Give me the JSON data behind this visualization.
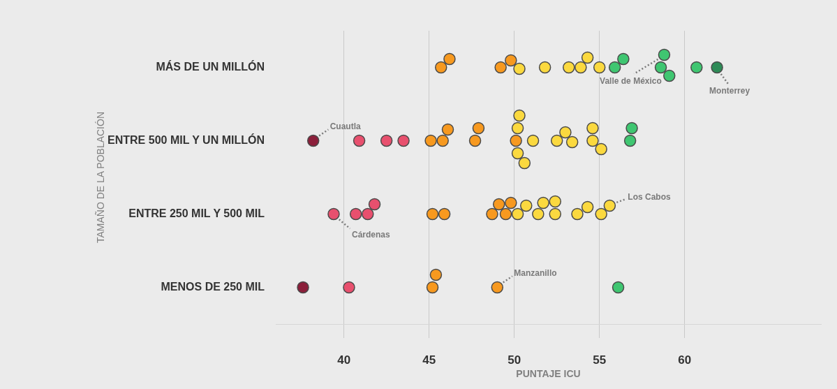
{
  "chart_data": {
    "type": "scatter",
    "orientation": "horizontal",
    "xlabel": "PUNTAJE ICU",
    "ylabel": "TAMAÑO DE LA POBLACIÓN",
    "categories": [
      "MÁS DE UN MILLÓN",
      "ENTRE 500 MIL Y UN MILLÓN",
      "ENTRE 250 MIL Y 500 MIL",
      "MENOS DE 250 MIL"
    ],
    "xlim": [
      36,
      68
    ],
    "xticks": [
      40,
      45,
      50,
      55,
      60
    ],
    "grid": "x",
    "legend": false,
    "marker": "circle",
    "series": [
      {
        "x": [
          "MÁS DE UN MILLÓN",
          "MÁS DE UN MILLÓN",
          "MÁS DE UN MILLÓN",
          "MÁS DE UN MILLÓN",
          "MÁS DE UN MILLÓN",
          "MÁS DE UN MILLÓN",
          "MÁS DE UN MILLÓN",
          "MÁS DE UN MILLÓN",
          "MÁS DE UN MILLÓN",
          "MÁS DE UN MILLÓN",
          "MÁS DE UN MILLÓN",
          "MÁS DE UN MILLÓN",
          "MÁS DE UN MILLÓN",
          "MÁS DE UN MILLÓN",
          "MÁS DE UN MILLÓN",
          "MÁS DE UN MILLÓN",
          "MÁS DE UN MILLÓN"
        ],
        "values": [
          45.7,
          46.2,
          49.2,
          49.8,
          50.3,
          51.8,
          53.2,
          53.9,
          54.3,
          55.0,
          55.9,
          56.4,
          58.6,
          58.8,
          59.1,
          60.7,
          61.9
        ],
        "colors": [
          "#f7991f",
          "#f7991f",
          "#f7991f",
          "#f7991f",
          "#fbd93f",
          "#fbd93f",
          "#fbd93f",
          "#fbd93f",
          "#fbd93f",
          "#fbd93f",
          "#3fc671",
          "#3fc671",
          "#3fc671",
          "#3fc671",
          "#3fc671",
          "#3fc671",
          "#2e8b57"
        ]
      },
      {
        "x": [
          "ENTRE 500 MIL Y UN MILLÓN",
          "ENTRE 500 MIL Y UN MILLÓN",
          "ENTRE 500 MIL Y UN MILLÓN",
          "ENTRE 500 MIL Y UN MILLÓN",
          "ENTRE 500 MIL Y UN MILLÓN",
          "ENTRE 500 MIL Y UN MILLÓN",
          "ENTRE 500 MIL Y UN MILLÓN",
          "ENTRE 500 MIL Y UN MILLÓN",
          "ENTRE 500 MIL Y UN MILLÓN",
          "ENTRE 500 MIL Y UN MILLÓN",
          "ENTRE 500 MIL Y UN MILLÓN",
          "ENTRE 500 MIL Y UN MILLÓN",
          "ENTRE 500 MIL Y UN MILLÓN",
          "ENTRE 500 MIL Y UN MILLÓN",
          "ENTRE 500 MIL Y UN MILLÓN",
          "ENTRE 500 MIL Y UN MILLÓN",
          "ENTRE 500 MIL Y UN MILLÓN",
          "ENTRE 500 MIL Y UN MILLÓN",
          "ENTRE 500 MIL Y UN MILLÓN",
          "ENTRE 500 MIL Y UN MILLÓN",
          "ENTRE 500 MIL Y UN MILLÓN",
          "ENTRE 500 MIL Y UN MILLÓN",
          "ENTRE 500 MIL Y UN MILLÓN"
        ],
        "values": [
          38.2,
          40.9,
          42.5,
          43.5,
          45.1,
          45.8,
          46.1,
          47.7,
          47.9,
          50.1,
          50.3,
          50.2,
          50.2,
          50.6,
          51.1,
          52.5,
          53.0,
          53.4,
          54.6,
          54.6,
          55.1,
          56.8,
          56.9
        ],
        "colors": [
          "#8b1f3a",
          "#e8506e",
          "#e8506e",
          "#e8506e",
          "#f7991f",
          "#f7991f",
          "#f7991f",
          "#f7991f",
          "#f7991f",
          "#f7991f",
          "#fbd93f",
          "#fbd93f",
          "#fbd93f",
          "#fbd93f",
          "#fbd93f",
          "#fbd93f",
          "#fbd93f",
          "#fbd93f",
          "#fbd93f",
          "#fbd93f",
          "#fbd93f",
          "#3fc671",
          "#3fc671"
        ]
      },
      {
        "x": [
          "ENTRE 250 MIL Y 500 MIL",
          "ENTRE 250 MIL Y 500 MIL",
          "ENTRE 250 MIL Y 500 MIL",
          "ENTRE 250 MIL Y 500 MIL",
          "ENTRE 250 MIL Y 500 MIL",
          "ENTRE 250 MIL Y 500 MIL",
          "ENTRE 250 MIL Y 500 MIL",
          "ENTRE 250 MIL Y 500 MIL",
          "ENTRE 250 MIL Y 500 MIL",
          "ENTRE 250 MIL Y 500 MIL",
          "ENTRE 250 MIL Y 500 MIL",
          "ENTRE 250 MIL Y 500 MIL",
          "ENTRE 250 MIL Y 500 MIL",
          "ENTRE 250 MIL Y 500 MIL",
          "ENTRE 250 MIL Y 500 MIL",
          "ENTRE 250 MIL Y 500 MIL",
          "ENTRE 250 MIL Y 500 MIL",
          "ENTRE 250 MIL Y 500 MIL",
          "ENTRE 250 MIL Y 500 MIL",
          "ENTRE 250 MIL Y 500 MIL"
        ],
        "values": [
          39.4,
          40.7,
          41.4,
          41.8,
          45.2,
          45.9,
          48.7,
          49.1,
          49.5,
          49.8,
          50.2,
          50.7,
          51.4,
          51.7,
          52.4,
          52.4,
          53.7,
          54.3,
          55.1,
          55.6
        ],
        "colors": [
          "#e8506e",
          "#e8506e",
          "#e8506e",
          "#e8506e",
          "#f7991f",
          "#f7991f",
          "#f7991f",
          "#f7991f",
          "#f7991f",
          "#f7991f",
          "#fbd93f",
          "#fbd93f",
          "#fbd93f",
          "#fbd93f",
          "#fbd93f",
          "#fbd93f",
          "#fbd93f",
          "#fbd93f",
          "#fbd93f",
          "#fbd93f"
        ]
      },
      {
        "x": [
          "MENOS DE 250 MIL",
          "MENOS DE 250 MIL",
          "MENOS DE 250 MIL",
          "MENOS DE 250 MIL",
          "MENOS DE 250 MIL",
          "MENOS DE 250 MIL"
        ],
        "values": [
          37.6,
          40.3,
          45.2,
          45.4,
          49.0,
          56.1
        ],
        "colors": [
          "#8b1f3a",
          "#e8506e",
          "#f7991f",
          "#f7991f",
          "#f7991f",
          "#3fc671"
        ]
      }
    ],
    "annotations": [
      {
        "text": "Cuautla",
        "x": 38.2,
        "y": "ENTRE 500 MIL Y UN MILLÓN"
      },
      {
        "text": "Cárdenas",
        "x": 39.4,
        "y": "ENTRE 250 MIL Y 500 MIL"
      },
      {
        "text": "Manzanillo",
        "x": 49.0,
        "y": "MENOS DE 250 MIL"
      },
      {
        "text": "Los Cabos",
        "x": 55.6,
        "y": "ENTRE 250 MIL Y 500 MIL"
      },
      {
        "text": "Valle de México",
        "x": 58.8,
        "y": "MÁS DE UN MILLÓN"
      },
      {
        "text": "Monterrey",
        "x": 61.9,
        "y": "MÁS DE UN MILLÓN"
      }
    ]
  }
}
